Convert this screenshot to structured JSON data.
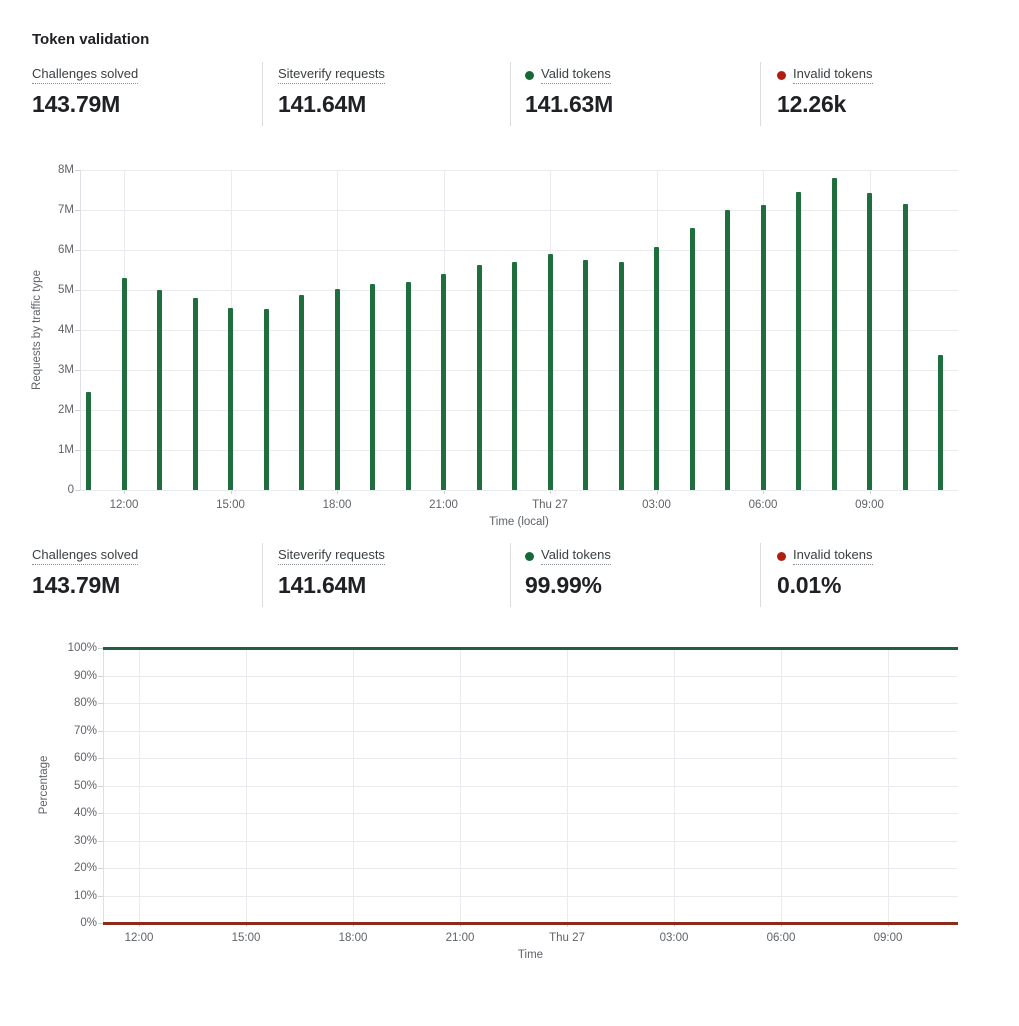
{
  "page_title": "Token validation",
  "colors": {
    "green_bar": "#1e6f3d",
    "green_line": "#215e42",
    "green_dot": "#136a37",
    "red_line": "#8e2a18",
    "red_dot": "#b01e12",
    "grid": "#e9ebee",
    "tick_text": "#5f6368",
    "value_text": "#202124"
  },
  "stats_top": [
    {
      "label": "Challenges solved",
      "value": "143.79M"
    },
    {
      "label": "Siteverify requests",
      "value": "141.64M"
    },
    {
      "label": "Valid tokens",
      "value": "141.63M",
      "dot_color": "#136a37"
    },
    {
      "label": "Invalid tokens",
      "value": "12.26k",
      "dot_color": "#b01e12"
    }
  ],
  "stats_bottom": [
    {
      "label": "Challenges solved",
      "value": "143.79M"
    },
    {
      "label": "Siteverify requests",
      "value": "141.64M"
    },
    {
      "label": "Valid tokens",
      "value": "99.99%",
      "dot_color": "#136a37"
    },
    {
      "label": "Invalid tokens",
      "value": "0.01%",
      "dot_color": "#b01e12"
    }
  ],
  "chart_data": [
    {
      "type": "bar",
      "title": "Requests by traffic type (hourly)",
      "ylabel": "Requests by traffic type",
      "xlabel": "Time (local)",
      "ylim_millions": [
        0,
        8
      ],
      "yticks": [
        "0",
        "1M",
        "2M",
        "3M",
        "4M",
        "5M",
        "6M",
        "7M",
        "8M"
      ],
      "bar_color": "#1e6f3d",
      "grid": true,
      "x": [
        "11:00",
        "12:00",
        "13:00",
        "14:00",
        "15:00",
        "16:00",
        "17:00",
        "18:00",
        "19:00",
        "20:00",
        "21:00",
        "22:00",
        "23:00",
        "Thu 27",
        "01:00",
        "02:00",
        "03:00",
        "04:00",
        "05:00",
        "06:00",
        "07:00",
        "08:00",
        "09:00",
        "10:00",
        "11:00"
      ],
      "values_millions": [
        2.45,
        5.3,
        5.0,
        4.8,
        4.55,
        4.53,
        4.88,
        5.02,
        5.15,
        5.2,
        5.4,
        5.63,
        5.7,
        5.9,
        5.75,
        5.7,
        6.08,
        6.55,
        7.0,
        7.12,
        7.45,
        7.8,
        7.43,
        7.15,
        3.38
      ],
      "xtick_indices": [
        1,
        4,
        7,
        10,
        13,
        16,
        19,
        22
      ]
    },
    {
      "type": "line",
      "title": "Token validity percentage",
      "ylabel": "Percentage",
      "xlabel": "Time",
      "ylim": [
        0,
        100
      ],
      "yticks": [
        "0%",
        "10%",
        "20%",
        "30%",
        "40%",
        "50%",
        "60%",
        "70%",
        "80%",
        "90%",
        "100%"
      ],
      "xticks": [
        "12:00",
        "15:00",
        "18:00",
        "21:00",
        "Thu 27",
        "03:00",
        "06:00",
        "09:00"
      ],
      "grid": true,
      "legend_position": "none",
      "series": [
        {
          "name": "Valid tokens",
          "color": "#215e42",
          "value_percent": 100
        },
        {
          "name": "Invalid tokens",
          "color": "#8e2a18",
          "value_percent": 0
        }
      ]
    }
  ]
}
